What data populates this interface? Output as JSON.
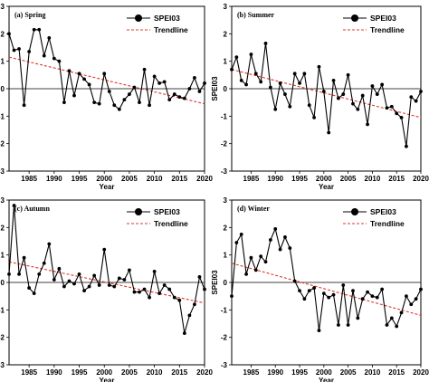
{
  "chart_data": [
    {
      "type": "line",
      "title": "(a)  Spring",
      "xlabel": "Year",
      "ylabel": "SPEI03",
      "xlim": [
        1981,
        2020
      ],
      "ylim": [
        -3,
        3
      ],
      "xticks": [
        1985,
        1990,
        1995,
        2000,
        2005,
        2010,
        2015,
        2020
      ],
      "yticks": [
        -3,
        -2,
        -1,
        0,
        1,
        2,
        3
      ],
      "legend_position": "top-right",
      "series": [
        {
          "name": "SPEI03",
          "x": [
            1981,
            1982,
            1983,
            1984,
            1985,
            1986,
            1987,
            1988,
            1989,
            1990,
            1991,
            1992,
            1993,
            1994,
            1995,
            1996,
            1997,
            1998,
            1999,
            2000,
            2001,
            2002,
            2003,
            2004,
            2005,
            2006,
            2007,
            2008,
            2009,
            2010,
            2011,
            2012,
            2013,
            2014,
            2015,
            2016,
            2017,
            2018,
            2019,
            2020
          ],
          "y": [
            2.0,
            1.4,
            1.45,
            -0.6,
            1.35,
            2.15,
            2.15,
            1.2,
            1.85,
            1.1,
            1.0,
            -0.5,
            0.65,
            -0.25,
            0.55,
            0.35,
            0.15,
            -0.5,
            -0.55,
            0.55,
            -0.1,
            -0.6,
            -0.75,
            -0.4,
            -0.2,
            0.05,
            -0.5,
            0.7,
            -0.6,
            0.45,
            0.2,
            0.25,
            -0.4,
            -0.2,
            -0.3,
            -0.35,
            0.0,
            0.4,
            -0.1,
            0.2
          ]
        },
        {
          "name": "Trendline",
          "x": [
            1981,
            2020
          ],
          "y": [
            1.15,
            -0.55
          ]
        }
      ]
    },
    {
      "type": "line",
      "title": "(b)  Summer",
      "xlabel": "Year",
      "ylabel": "SPEI03",
      "xlim": [
        1981,
        2020
      ],
      "ylim": [
        -3,
        3
      ],
      "xticks": [
        1985,
        1990,
        1995,
        2000,
        2005,
        2010,
        2015,
        2020
      ],
      "yticks": [
        -3,
        -2,
        -1,
        0,
        1,
        2,
        3
      ],
      "legend_position": "top-right",
      "series": [
        {
          "name": "SPEI03",
          "x": [
            1981,
            1982,
            1983,
            1984,
            1985,
            1986,
            1987,
            1988,
            1989,
            1990,
            1991,
            1992,
            1993,
            1994,
            1995,
            1996,
            1997,
            1998,
            1999,
            2000,
            2001,
            2002,
            2003,
            2004,
            2005,
            2006,
            2007,
            2008,
            2009,
            2010,
            2011,
            2012,
            2013,
            2014,
            2015,
            2016,
            2017,
            2018,
            2019,
            2020
          ],
          "y": [
            0.7,
            1.15,
            0.3,
            0.15,
            1.25,
            0.55,
            0.25,
            1.65,
            0.05,
            -0.75,
            0.2,
            -0.2,
            -0.65,
            0.55,
            0.2,
            0.55,
            -0.6,
            -1.05,
            0.8,
            -0.1,
            -1.6,
            0.3,
            -0.35,
            -0.2,
            0.5,
            -0.55,
            -0.75,
            -0.25,
            -1.3,
            0.1,
            -0.2,
            0.15,
            -0.7,
            -0.65,
            -0.9,
            -1.05,
            -2.1,
            -0.3,
            -0.45,
            -0.1
          ]
        },
        {
          "name": "Trendline",
          "x": [
            1981,
            2020
          ],
          "y": [
            0.7,
            -1.05
          ]
        }
      ]
    },
    {
      "type": "line",
      "title": "(c)  Autumn",
      "xlabel": "Year",
      "ylabel": "SPEI03",
      "xlim": [
        1981,
        2020
      ],
      "ylim": [
        -3,
        3
      ],
      "xticks": [
        1985,
        1990,
        1995,
        2000,
        2005,
        2010,
        2015,
        2020
      ],
      "yticks": [
        -3,
        -2,
        -1,
        0,
        1,
        2,
        3
      ],
      "legend_position": "top-right",
      "series": [
        {
          "name": "SPEI03",
          "x": [
            1981,
            1982,
            1983,
            1984,
            1985,
            1986,
            1987,
            1988,
            1989,
            1990,
            1991,
            1992,
            1993,
            1994,
            1995,
            1996,
            1997,
            1998,
            1999,
            2000,
            2001,
            2002,
            2003,
            2004,
            2005,
            2006,
            2007,
            2008,
            2009,
            2010,
            2011,
            2012,
            2013,
            2014,
            2015,
            2016,
            2017,
            2018,
            2019,
            2020
          ],
          "y": [
            0.3,
            2.8,
            0.3,
            0.9,
            -0.2,
            -0.4,
            0.3,
            0.7,
            1.4,
            0.1,
            0.5,
            -0.15,
            0.05,
            -0.05,
            0.3,
            -0.3,
            -0.15,
            0.25,
            -0.1,
            1.2,
            -0.1,
            -0.15,
            0.15,
            0.1,
            0.45,
            -0.35,
            -0.35,
            -0.25,
            -0.55,
            0.4,
            -0.4,
            -0.1,
            -0.25,
            -0.55,
            -0.65,
            -1.85,
            -1.2,
            -0.8,
            0.2,
            -0.25
          ]
        },
        {
          "name": "Trendline",
          "x": [
            1981,
            2020
          ],
          "y": [
            0.75,
            -0.75
          ]
        }
      ]
    },
    {
      "type": "line",
      "title": "(d)  Winter",
      "xlabel": "Year",
      "ylabel": "SPEI03",
      "xlim": [
        1981,
        2020
      ],
      "ylim": [
        -3,
        3
      ],
      "xticks": [
        1985,
        1990,
        1995,
        2000,
        2005,
        2010,
        2015,
        2020
      ],
      "yticks": [
        -3,
        -2,
        -1,
        0,
        1,
        2,
        3
      ],
      "legend_position": "top-right",
      "series": [
        {
          "name": "SPEI03",
          "x": [
            1981,
            1982,
            1983,
            1984,
            1985,
            1986,
            1987,
            1988,
            1989,
            1990,
            1991,
            1992,
            1993,
            1994,
            1995,
            1996,
            1997,
            1998,
            1999,
            2000,
            2001,
            2002,
            2003,
            2004,
            2005,
            2006,
            2007,
            2008,
            2009,
            2010,
            2011,
            2012,
            2013,
            2014,
            2015,
            2016,
            2017,
            2018,
            2019,
            2020
          ],
          "y": [
            -0.5,
            1.45,
            1.75,
            0.3,
            0.9,
            0.45,
            0.95,
            0.75,
            1.55,
            1.95,
            1.2,
            1.65,
            1.25,
            0.05,
            -0.3,
            -0.6,
            -0.3,
            -0.2,
            -1.75,
            -0.4,
            -0.55,
            -0.45,
            -1.55,
            -0.1,
            -1.55,
            -0.3,
            -1.3,
            -0.6,
            -0.35,
            -0.5,
            -0.55,
            -0.25,
            -1.55,
            -1.3,
            -1.6,
            -1.1,
            -0.5,
            -0.8,
            -0.6,
            -0.25
          ]
        },
        {
          "name": "Trendline",
          "x": [
            1981,
            2020
          ],
          "y": [
            0.7,
            -1.2
          ]
        }
      ]
    }
  ]
}
